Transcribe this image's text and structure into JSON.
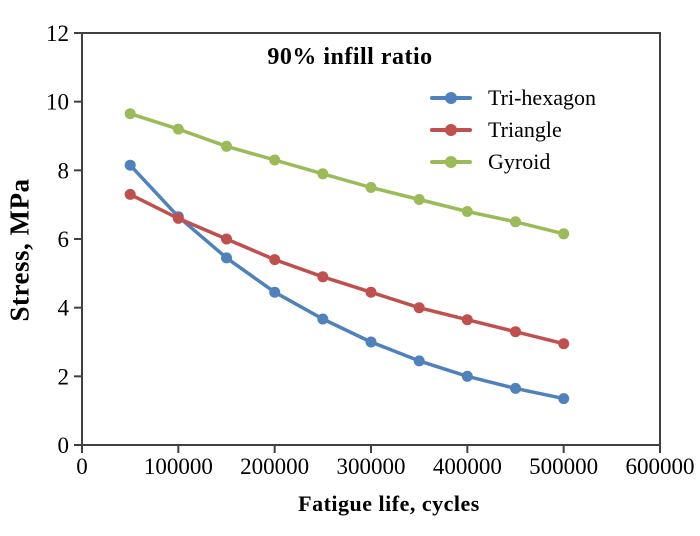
{
  "chart_data": {
    "type": "line",
    "title": "90% infill ratio",
    "xlabel": "Fatigue life, cycles",
    "ylabel": "Stress, MPa",
    "x": [
      50000,
      100000,
      150000,
      200000,
      250000,
      300000,
      350000,
      400000,
      450000,
      500000
    ],
    "series": [
      {
        "name": "Tri-hexagon",
        "color": "#4F81BD",
        "values": [
          8.15,
          6.65,
          5.45,
          4.45,
          3.67,
          3.0,
          2.45,
          2.0,
          1.65,
          1.35
        ]
      },
      {
        "name": "Triangle",
        "color": "#C0504D",
        "values": [
          7.3,
          6.6,
          6.0,
          5.4,
          4.9,
          4.45,
          4.0,
          3.65,
          3.3,
          2.95
        ]
      },
      {
        "name": "Gyroid",
        "color": "#9BBB59",
        "values": [
          9.65,
          9.2,
          8.7,
          8.3,
          7.9,
          7.5,
          7.15,
          6.8,
          6.5,
          6.15
        ]
      }
    ],
    "xlim": [
      0,
      600000
    ],
    "ylim": [
      0,
      12
    ],
    "x_ticks": [
      0,
      100000,
      200000,
      300000,
      400000,
      500000,
      600000
    ],
    "y_ticks": [
      0,
      2,
      4,
      6,
      8,
      10,
      12
    ],
    "grid": false,
    "legend_position": "upper-right-inside",
    "axis_color": "#404040",
    "marker": "circle"
  }
}
